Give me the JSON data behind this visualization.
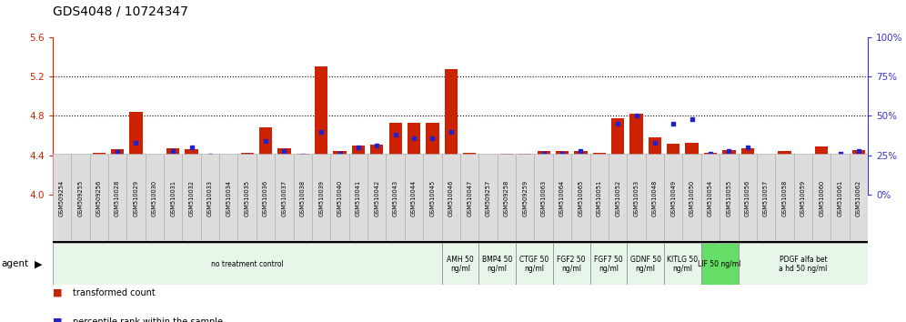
{
  "title": "GDS4048 / 10724347",
  "ylim_left": [
    4.0,
    5.6
  ],
  "ylim_right": [
    0,
    100
  ],
  "yticks_left": [
    4.0,
    4.4,
    4.8,
    5.2,
    5.6
  ],
  "yticks_right": [
    0,
    25,
    50,
    75,
    100
  ],
  "bar_color": "#cc2200",
  "dot_color": "#2222cc",
  "samples": [
    "GSM509254",
    "GSM509255",
    "GSM509256",
    "GSM510028",
    "GSM510029",
    "GSM510030",
    "GSM510031",
    "GSM510032",
    "GSM510033",
    "GSM510034",
    "GSM510035",
    "GSM510036",
    "GSM510037",
    "GSM510038",
    "GSM510039",
    "GSM510040",
    "GSM510041",
    "GSM510042",
    "GSM510043",
    "GSM510044",
    "GSM510045",
    "GSM510046",
    "GSM510047",
    "GSM509257",
    "GSM509258",
    "GSM509259",
    "GSM510063",
    "GSM510064",
    "GSM510065",
    "GSM510051",
    "GSM510052",
    "GSM510053",
    "GSM510048",
    "GSM510049",
    "GSM510050",
    "GSM510054",
    "GSM510055",
    "GSM510056",
    "GSM510057",
    "GSM510058",
    "GSM510059",
    "GSM510060",
    "GSM510061",
    "GSM510062"
  ],
  "bar_values": [
    4.36,
    4.38,
    4.43,
    4.46,
    4.84,
    4.39,
    4.47,
    4.46,
    4.41,
    4.41,
    4.43,
    4.68,
    4.47,
    4.42,
    5.3,
    4.44,
    4.5,
    4.51,
    4.73,
    4.73,
    4.73,
    5.27,
    4.43,
    4.24,
    4.42,
    4.42,
    4.44,
    4.44,
    4.44,
    4.43,
    4.78,
    4.82,
    4.58,
    4.52,
    4.53,
    4.43,
    4.45,
    4.47,
    4.4,
    4.44,
    4.24,
    4.49,
    4.4,
    4.45
  ],
  "percentile_values": [
    22,
    22,
    23,
    27,
    33,
    20,
    28,
    30,
    25,
    24,
    25,
    34,
    28,
    25,
    40,
    26,
    30,
    31,
    38,
    36,
    36,
    40,
    24,
    13,
    20,
    16,
    26,
    26,
    28,
    24,
    45,
    50,
    33,
    45,
    48,
    26,
    28,
    30,
    22,
    24,
    18,
    24,
    26,
    28
  ],
  "agent_groups": [
    {
      "label": "no treatment control",
      "start": 0,
      "end": 21,
      "color": "#e8f5e9",
      "bright": false
    },
    {
      "label": "AMH 50\nng/ml",
      "start": 21,
      "end": 23,
      "color": "#e8f5e9",
      "bright": false
    },
    {
      "label": "BMP4 50\nng/ml",
      "start": 23,
      "end": 25,
      "color": "#e8f5e9",
      "bright": false
    },
    {
      "label": "CTGF 50\nng/ml",
      "start": 25,
      "end": 27,
      "color": "#e8f5e9",
      "bright": false
    },
    {
      "label": "FGF2 50\nng/ml",
      "start": 27,
      "end": 29,
      "color": "#e8f5e9",
      "bright": false
    },
    {
      "label": "FGF7 50\nng/ml",
      "start": 29,
      "end": 31,
      "color": "#e8f5e9",
      "bright": false
    },
    {
      "label": "GDNF 50\nng/ml",
      "start": 31,
      "end": 33,
      "color": "#e8f5e9",
      "bright": false
    },
    {
      "label": "KITLG 50\nng/ml",
      "start": 33,
      "end": 35,
      "color": "#e8f5e9",
      "bright": false
    },
    {
      "label": "LIF 50 ng/ml",
      "start": 35,
      "end": 37,
      "color": "#66dd66",
      "bright": true
    },
    {
      "label": "PDGF alfa bet\na hd 50 ng/ml",
      "start": 37,
      "end": 44,
      "color": "#e8f5e9",
      "bright": false
    }
  ],
  "left_axis_color": "#cc2200",
  "right_axis_color": "#3333cc",
  "gridline_ticks": [
    4.4,
    4.8,
    5.2
  ],
  "label_box_color": "#dddddd",
  "label_box_edge": "#aaaaaa"
}
